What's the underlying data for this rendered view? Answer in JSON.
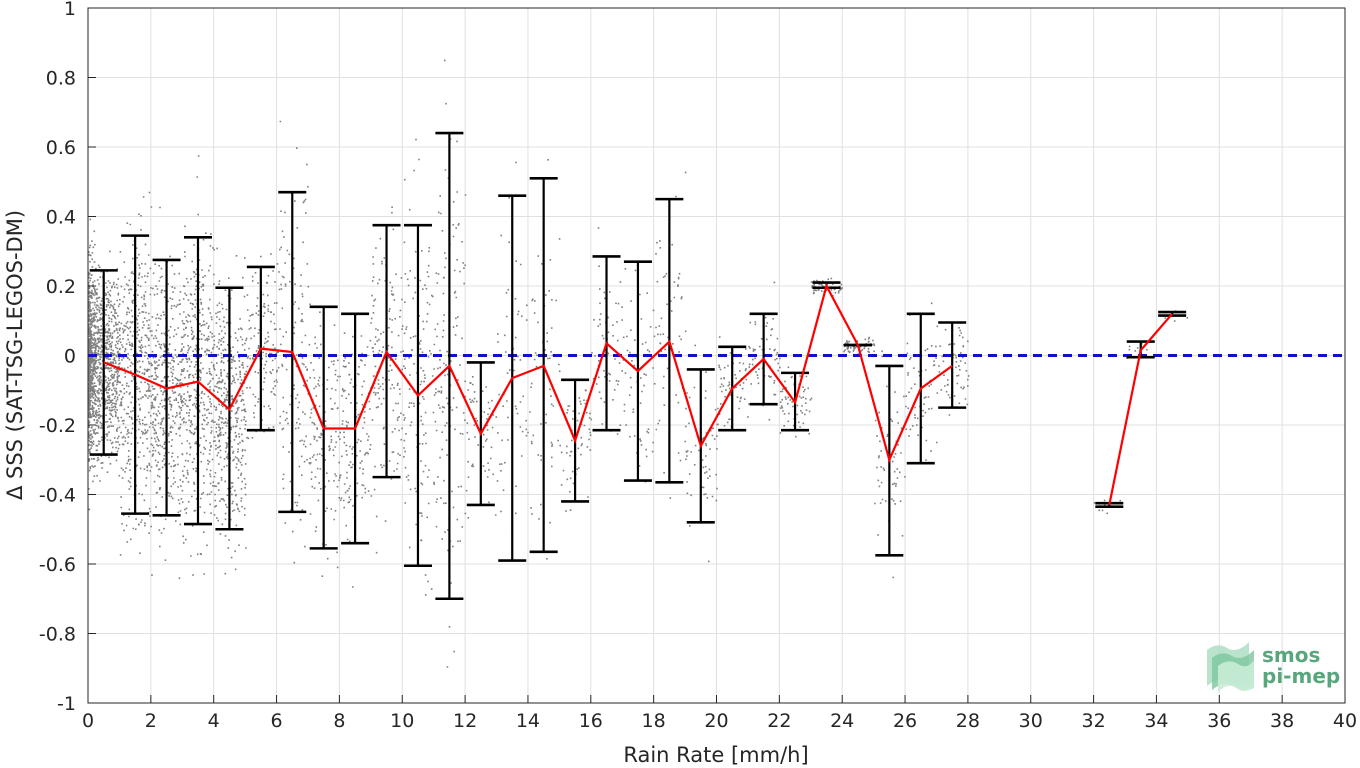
{
  "chart_data": {
    "type": "scatter",
    "xlabel": "Rain Rate [mm/h]",
    "ylabel": "Δ SSS (SAT-TSG-LEGOS-DM)",
    "xlim": [
      0,
      40
    ],
    "ylim": [
      -1,
      1
    ],
    "xticks": [
      "0",
      "2",
      "4",
      "6",
      "8",
      "10",
      "12",
      "14",
      "16",
      "18",
      "20",
      "22",
      "24",
      "26",
      "28",
      "30",
      "32",
      "34",
      "36",
      "38",
      "40"
    ],
    "yticks": [
      "-1",
      "-0.8",
      "-0.6",
      "-0.4",
      "-0.2",
      "0",
      "0.2",
      "0.4",
      "0.6",
      "0.8",
      "1"
    ],
    "grid": true,
    "reference_line": {
      "y": 0,
      "style": "dashed",
      "color": "#1010d0"
    },
    "colors": {
      "scatter": "#808080",
      "errorbar": "#000000",
      "mean_line": "#ff0000",
      "reference": "#1010d0",
      "axis": "#262626",
      "grid": "#e0e0e0"
    },
    "series": [
      {
        "type": "errorbar",
        "x": [
          0.5,
          1.5,
          2.5,
          3.5,
          4.5,
          5.5,
          6.5,
          7.5,
          8.5,
          9.5,
          10.5,
          11.5,
          12.5,
          13.5,
          14.5,
          15.5,
          16.5,
          17.5,
          18.5,
          19.5,
          20.5,
          21.5,
          22.5,
          23.5,
          24.5,
          25.5,
          26.5,
          27.5,
          32.5,
          33.5,
          34.5
        ],
        "mean": [
          -0.02,
          -0.055,
          -0.095,
          -0.075,
          -0.155,
          0.02,
          0.01,
          -0.21,
          -0.21,
          0.01,
          -0.115,
          -0.03,
          -0.225,
          -0.065,
          -0.03,
          -0.245,
          0.035,
          -0.045,
          0.04,
          -0.26,
          -0.095,
          -0.01,
          -0.135,
          0.2,
          0.03,
          -0.3,
          -0.095,
          -0.03,
          -0.43,
          0.015,
          0.12
        ],
        "upper": [
          0.245,
          0.345,
          0.275,
          0.34,
          0.195,
          0.255,
          0.47,
          0.14,
          0.12,
          0.375,
          0.375,
          0.64,
          -0.02,
          0.46,
          0.51,
          -0.07,
          0.285,
          0.27,
          0.45,
          -0.04,
          0.025,
          0.12,
          -0.05,
          0.21,
          0.03,
          -0.03,
          0.12,
          0.095,
          -0.425,
          0.04,
          0.125
        ],
        "lower": [
          -0.285,
          -0.455,
          -0.46,
          -0.485,
          -0.5,
          -0.215,
          -0.45,
          -0.555,
          -0.54,
          -0.35,
          -0.605,
          -0.7,
          -0.43,
          -0.59,
          -0.565,
          -0.42,
          -0.215,
          -0.36,
          -0.365,
          -0.48,
          -0.215,
          -0.14,
          -0.215,
          0.195,
          0.03,
          -0.575,
          -0.31,
          -0.15,
          -0.435,
          -0.005,
          0.115
        ]
      }
    ]
  },
  "logo": {
    "line1": "smos",
    "line2": "pi-mep"
  }
}
